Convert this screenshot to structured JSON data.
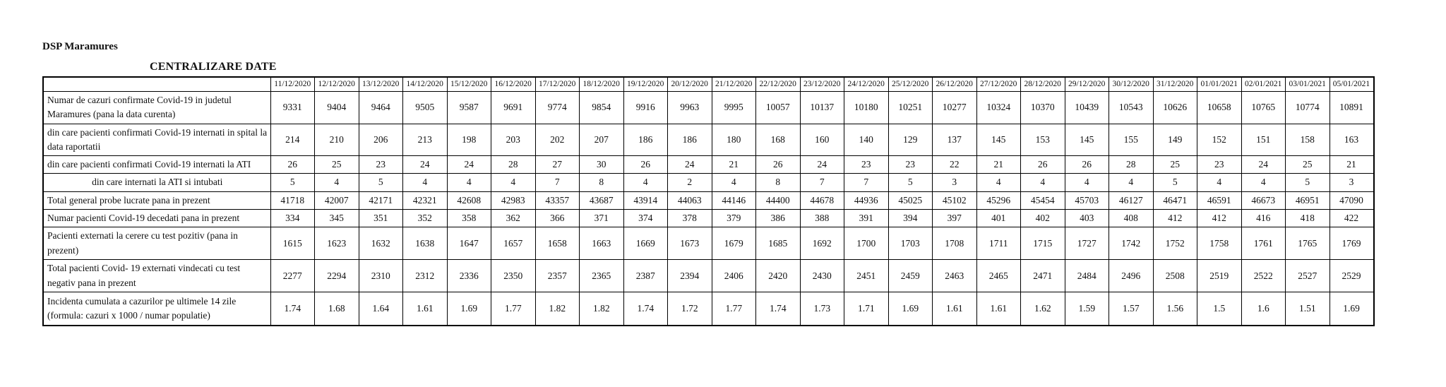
{
  "page": {
    "org_title": "DSP Maramures",
    "table_title": "CENTRALIZARE DATE"
  },
  "table": {
    "corner_label": "",
    "date_columns": [
      "11/12/2020",
      "12/12/2020",
      "13/12/2020",
      "14/12/2020",
      "15/12/2020",
      "16/12/2020",
      "17/12/2020",
      "18/12/2020",
      "19/12/2020",
      "20/12/2020",
      "21/12/2020",
      "22/12/2020",
      "23/12/2020",
      "24/12/2020",
      "25/12/2020",
      "26/12/2020",
      "27/12/2020",
      "28/12/2020",
      "29/12/2020",
      "30/12/2020",
      "31/12/2020",
      "01/01/2021",
      "02/01/2021",
      "03/01/2021",
      "05/01/2021"
    ],
    "rows": [
      {
        "label": "Numar de cazuri confirmate Covid-19 in judetul Maramures (pana la data curenta)",
        "align": "left",
        "values": [
          9331,
          9404,
          9464,
          9505,
          9587,
          9691,
          9774,
          9854,
          9916,
          9963,
          9995,
          10057,
          10137,
          10180,
          10251,
          10277,
          10324,
          10370,
          10439,
          10543,
          10626,
          10658,
          10765,
          10774,
          10891
        ]
      },
      {
        "label": "din care pacienti confirmati Covid-19 internati in spital la data raportatii",
        "align": "left",
        "values": [
          214,
          210,
          206,
          213,
          198,
          203,
          202,
          207,
          186,
          186,
          180,
          168,
          160,
          140,
          129,
          137,
          145,
          153,
          145,
          155,
          149,
          152,
          151,
          158,
          163
        ]
      },
      {
        "label": "din care pacienti confirmati Covid-19 internati la ATI",
        "align": "left",
        "values": [
          26,
          25,
          23,
          24,
          24,
          28,
          27,
          30,
          26,
          24,
          21,
          26,
          24,
          23,
          23,
          22,
          21,
          26,
          26,
          28,
          25,
          23,
          24,
          25,
          21
        ]
      },
      {
        "label": "din care internati la ATI si intubati",
        "align": "center",
        "values": [
          5,
          4,
          5,
          4,
          4,
          4,
          7,
          8,
          4,
          2,
          4,
          8,
          7,
          7,
          5,
          3,
          4,
          4,
          4,
          4,
          5,
          4,
          4,
          5,
          3
        ]
      },
      {
        "label": "Total general probe lucrate pana in prezent",
        "align": "left",
        "values": [
          41718,
          42007,
          42171,
          42321,
          42608,
          42983,
          43357,
          43687,
          43914,
          44063,
          44146,
          44400,
          44678,
          44936,
          45025,
          45102,
          45296,
          45454,
          45703,
          46127,
          46471,
          46591,
          46673,
          46951,
          47090
        ]
      },
      {
        "label": "Numar pacienti Covid-19 decedati pana in prezent",
        "align": "left",
        "values": [
          334,
          345,
          351,
          352,
          358,
          362,
          366,
          371,
          374,
          378,
          379,
          386,
          388,
          391,
          394,
          397,
          401,
          402,
          403,
          408,
          412,
          412,
          416,
          418,
          422
        ]
      },
      {
        "label": "Pacienti externati la cerere cu test pozitiv (pana in prezent)",
        "align": "left",
        "values": [
          1615,
          1623,
          1632,
          1638,
          1647,
          1657,
          1658,
          1663,
          1669,
          1673,
          1679,
          1685,
          1692,
          1700,
          1703,
          1708,
          1711,
          1715,
          1727,
          1742,
          1752,
          1758,
          1761,
          1765,
          1769
        ]
      },
      {
        "label": "Total pacienti Covid- 19 externati vindecati cu test negativ pana in prezent",
        "align": "left",
        "values": [
          2277,
          2294,
          2310,
          2312,
          2336,
          2350,
          2357,
          2365,
          2387,
          2394,
          2406,
          2420,
          2430,
          2451,
          2459,
          2463,
          2465,
          2471,
          2484,
          2496,
          2508,
          2519,
          2522,
          2527,
          2529
        ]
      },
      {
        "label": "Incidenta cumulata a cazurilor pe ultimele 14 zile (formula: cazuri x 1000 / numar populatie)",
        "align": "left",
        "values": [
          "1.74",
          "1.68",
          "1.64",
          "1.61",
          "1.69",
          "1.77",
          "1.82",
          "1.82",
          "1.74",
          "1.72",
          "1.77",
          "1.74",
          "1.73",
          "1.71",
          "1.69",
          "1.61",
          "1.61",
          "1.62",
          "1.59",
          "1.57",
          "1.56",
          "1.5",
          "1.6",
          "1.51",
          "1.69"
        ]
      }
    ]
  }
}
